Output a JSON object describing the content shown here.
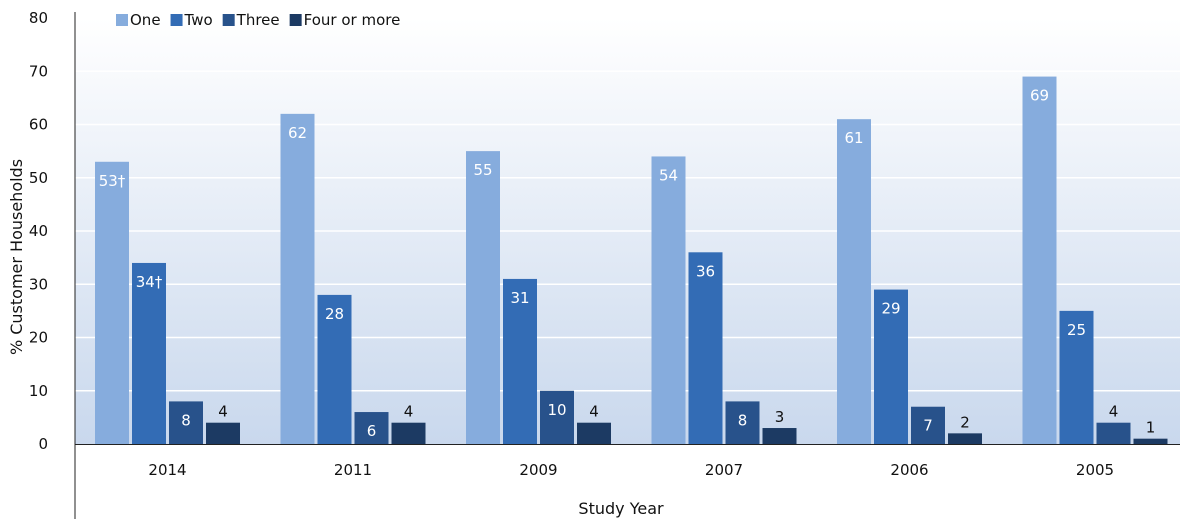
{
  "chart_data": {
    "type": "bar",
    "title": "",
    "xlabel": "Study Year",
    "ylabel": "% Customer Households",
    "ylim": [
      0,
      80
    ],
    "yticks": [
      0,
      10,
      20,
      30,
      40,
      50,
      60,
      70,
      80
    ],
    "grid": true,
    "legend_position": "top-left",
    "categories": [
      "2014",
      "2011",
      "2009",
      "2007",
      "2006",
      "2005"
    ],
    "series": [
      {
        "name": "One",
        "color": "#86acdd",
        "values": [
          53,
          62,
          55,
          54,
          61,
          69
        ],
        "labels": [
          "53†",
          "62",
          "55",
          "54",
          "61",
          "69"
        ],
        "label_position": "inside"
      },
      {
        "name": "Two",
        "color": "#336cb5",
        "values": [
          34,
          28,
          31,
          36,
          29,
          25
        ],
        "labels": [
          "34†",
          "28",
          "31",
          "36",
          "29",
          "25"
        ],
        "label_position": "inside"
      },
      {
        "name": "Three",
        "color": "#28528b",
        "values": [
          8,
          6,
          10,
          8,
          7,
          4
        ],
        "labels": [
          "8",
          "6",
          "10",
          "8",
          "7",
          "4"
        ],
        "label_position": "mixed"
      },
      {
        "name": "Four or more",
        "color": "#1c3a63",
        "values": [
          4,
          4,
          4,
          3,
          2,
          1
        ],
        "labels": [
          "4",
          "4",
          "4",
          "3",
          "2",
          "1"
        ],
        "label_position": "above"
      }
    ]
  }
}
